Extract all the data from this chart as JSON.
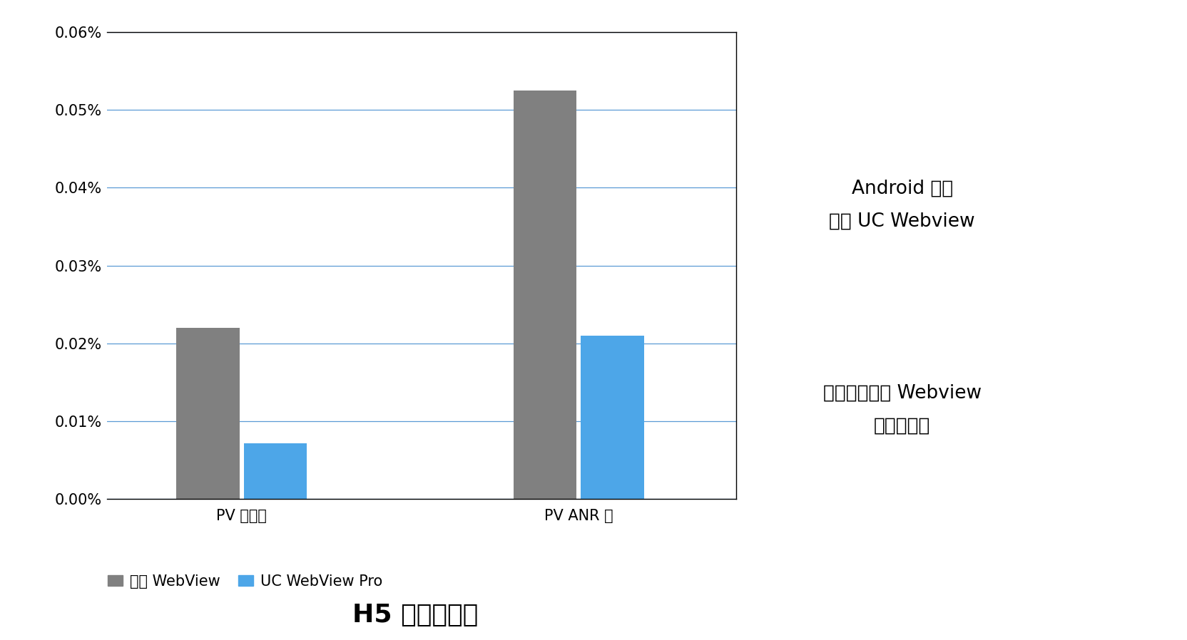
{
  "categories": [
    "PV 崩溃率",
    "PV ANR 率"
  ],
  "series": [
    {
      "name": "系统 WebView",
      "color": "#808080",
      "values": [
        0.00022,
        0.000525
      ]
    },
    {
      "name": "UC WebView Pro",
      "color": "#4DA6E8",
      "values": [
        7.2e-05,
        0.00021
      ]
    }
  ],
  "ylim": [
    0,
    0.0006
  ],
  "yticks": [
    0.0,
    0.0001,
    0.0002,
    0.0003,
    0.0004,
    0.0005,
    0.0006
  ],
  "ytick_labels": [
    "0.00%",
    "0.01%",
    "0.02%",
    "0.03%",
    "0.04%",
    "0.05%",
    "0.06%"
  ],
  "title": "H5 容器稳定性",
  "title_fontsize": 26,
  "title_fontweight": "bold",
  "annotation1_line1": "Android 平台",
  "annotation1_line2": "基于 UC Webview",
  "annotation2_line1": "解决安卓系统 Webview",
  "annotation2_line2": "碎片化问题",
  "annotation_fontsize": 19,
  "legend_fontsize": 15,
  "axis_label_fontsize": 15,
  "tick_fontsize": 15,
  "bar_width": 0.28,
  "grid_color": "#5B9BD5",
  "background_color": "#FFFFFF",
  "chart_bg_color": "#FFFFFF"
}
